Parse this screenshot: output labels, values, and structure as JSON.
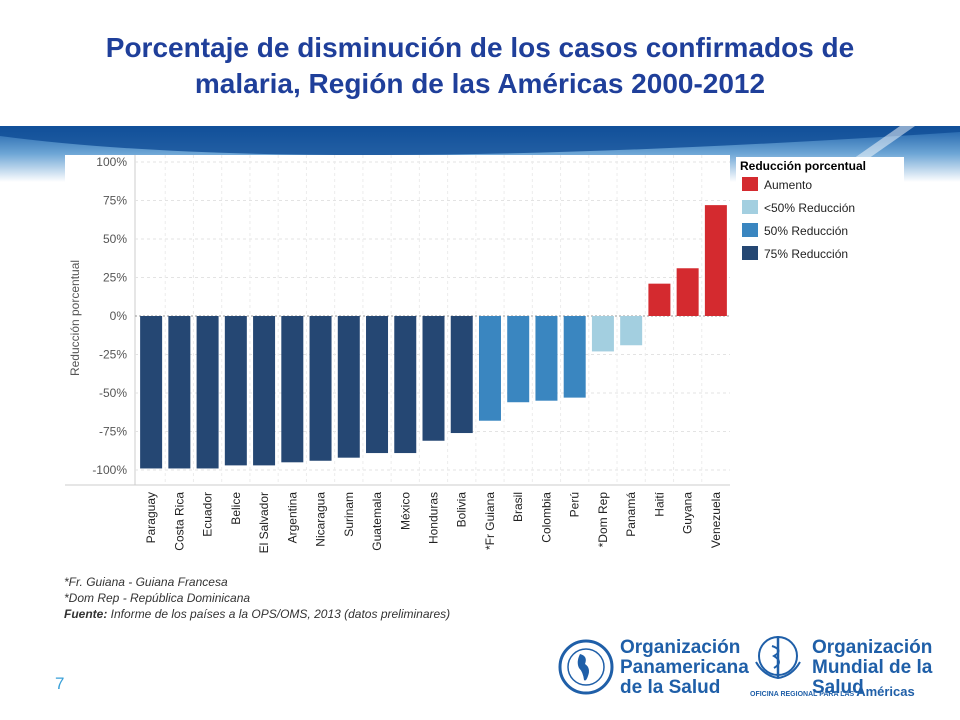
{
  "title": {
    "line1": "Porcentaje de disminución de los casos confirmados de",
    "line2": "malaria, Región de las Américas 2000-2012"
  },
  "colors": {
    "title": "#1f3f9a",
    "aumento": "#d42a2f",
    "menos50": "#a3cfe0",
    "r50": "#3a86c0",
    "r75": "#254773"
  },
  "chart_data": {
    "type": "bar",
    "ylabel": "Reducción porcentual",
    "ylim": [
      -100,
      100
    ],
    "ytick_values": [
      100,
      75,
      50,
      25,
      0,
      -25,
      -50,
      -75,
      -100
    ],
    "ytick_labels": [
      "100%",
      "75%",
      "50%",
      "25%",
      "0%",
      "-25%",
      "-50%",
      "-75%",
      "-100%"
    ],
    "categories": [
      "Paraguay",
      "Costa Rica",
      "Ecuador",
      "Belice",
      "El Salvador",
      "Argentina",
      "Nicaragua",
      "Surinam",
      "Guatemala",
      "México",
      "Honduras",
      "Bolivia",
      "*Fr Guiana",
      "Brasil",
      "Colombia",
      "Perú",
      "*Dom Rep",
      "Panamá",
      "Haití",
      "Guyana",
      "Venezuela"
    ],
    "values": [
      -99,
      -99,
      -99,
      -97,
      -97,
      -95,
      -94,
      -92,
      -89,
      -89,
      -81,
      -76,
      -68,
      -56,
      -55,
      -53,
      -23,
      -19,
      21,
      31,
      72
    ],
    "groups": [
      "r75",
      "r75",
      "r75",
      "r75",
      "r75",
      "r75",
      "r75",
      "r75",
      "r75",
      "r75",
      "r75",
      "r75",
      "r50",
      "r50",
      "r50",
      "r50",
      "menos50",
      "menos50",
      "aumento",
      "aumento",
      "aumento"
    ],
    "legend": {
      "title": "Reducción porcentual",
      "placement": "top-right",
      "items": [
        {
          "key": "aumento",
          "label": "Aumento"
        },
        {
          "key": "menos50",
          "label": "<50% Reducción"
        },
        {
          "key": "r50",
          "label": "50% Reducción"
        },
        {
          "key": "r75",
          "label": "75% Reducción"
        }
      ]
    }
  },
  "notes": {
    "note1": "*Fr. Guiana - Guiana Francesa",
    "note2": "*Dom Rep - República Dominicana",
    "source_label": "Fuente:",
    "source_text": " Informe de los países a la OPS/OMS, 2013 (datos preliminares)"
  },
  "page_number": "7",
  "logos": {
    "paho_line1": "Organización",
    "paho_line2": "Panamericana",
    "paho_line3": "de la Salud",
    "who_line1": "Organización",
    "who_line2": "Mundial de la Salud",
    "who_tag": "OFICINA REGIONAL PARA LAS",
    "who_region": "Américas"
  }
}
